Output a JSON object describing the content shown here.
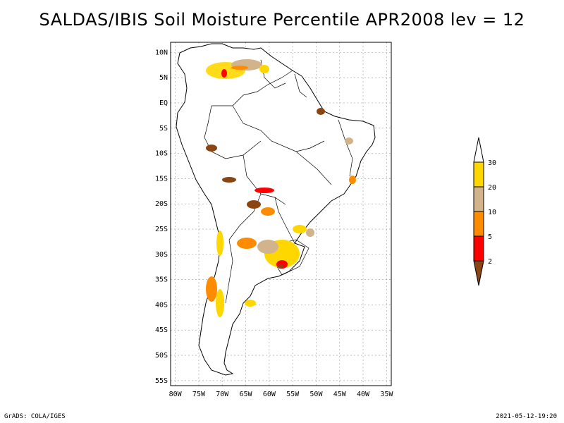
{
  "title": "SALDAS/IBIS Soil Moisture Percentile APR2008 lev = 12",
  "map": {
    "lat_ticks": [
      "10N",
      "5N",
      "EQ",
      "5S",
      "10S",
      "15S",
      "20S",
      "25S",
      "30S",
      "35S",
      "40S",
      "45S",
      "50S",
      "55S"
    ],
    "lon_ticks": [
      "80W",
      "75W",
      "70W",
      "65W",
      "60W",
      "55W",
      "50W",
      "45W",
      "40W",
      "35W"
    ],
    "lat_range": [
      -56,
      12
    ],
    "lon_range": [
      -81,
      -34
    ]
  },
  "legend": {
    "labels": [
      "2",
      "5",
      "10",
      "20",
      "30"
    ],
    "colors": [
      "#8b4513",
      "#ff0000",
      "#ff8c00",
      "#d2b48c",
      "#ffd700",
      "#ffffff"
    ]
  },
  "footer": {
    "left": "GrADS: COLA/IGES",
    "right": "2021-05-12-19:20"
  }
}
